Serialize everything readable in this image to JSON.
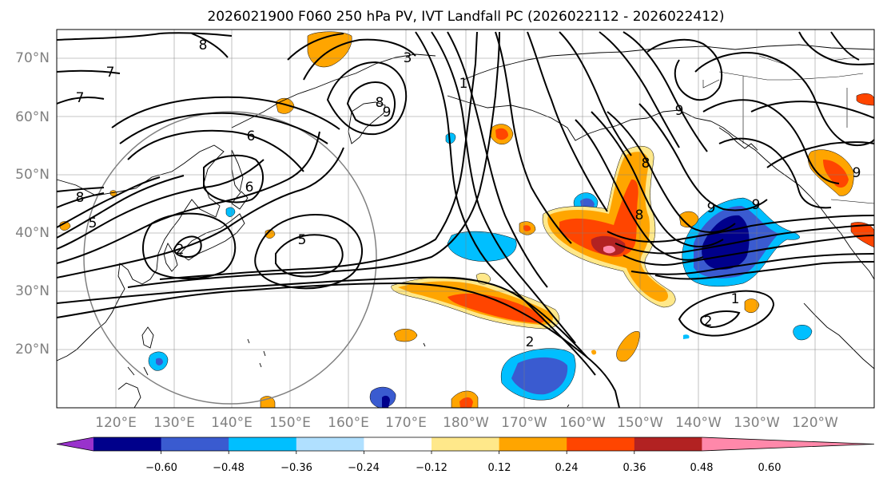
{
  "title": "2026021900 F060 250 hPa PV, IVT Landfall PC (2026022112 - 2026022412)",
  "axes": {
    "lat_labels": [
      "70°N",
      "60°N",
      "50°N",
      "40°N",
      "30°N",
      "20°N"
    ],
    "lon_labels": [
      "120°E",
      "130°E",
      "140°E",
      "150°E",
      "160°E",
      "170°E",
      "180°W",
      "170°W",
      "160°W",
      "150°W",
      "140°W",
      "130°W",
      "120°W"
    ]
  },
  "colorbar": {
    "ticks": [
      "−0.60",
      "−0.48",
      "−0.36",
      "−0.24",
      "−0.12",
      "0.12",
      "0.24",
      "0.36",
      "0.48",
      "0.60"
    ],
    "colors": [
      "#9932cc",
      "#00008b",
      "#3a5bd0",
      "#00bfff",
      "#b0e0ff",
      "#ffffff",
      "#ffe88a",
      "#ffa500",
      "#ff4500",
      "#b22222",
      "#ff88aa"
    ]
  },
  "contour_labels": [
    "7",
    "7",
    "8",
    "8",
    "8",
    "6",
    "6",
    "5",
    "5",
    "2",
    "2",
    "1",
    "1",
    "2",
    "9",
    "9",
    "9",
    "8",
    "8",
    "9",
    "3",
    "9"
  ]
}
